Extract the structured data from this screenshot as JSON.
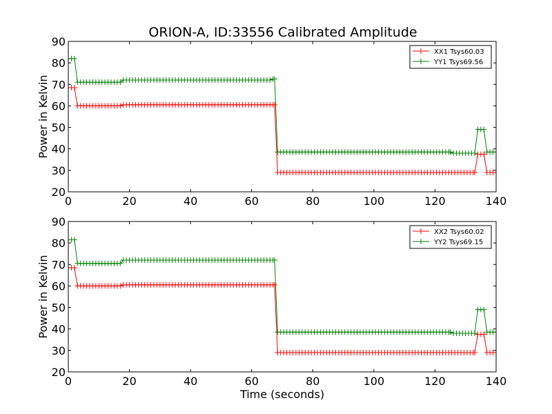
{
  "title": "ORION-A, ID:33556 Calibrated Amplitude",
  "colors": {
    "xx": "#ff0000",
    "yy": "#008000"
  },
  "chart_data": [
    {
      "type": "line",
      "title": "ORION-A, ID:33556 Calibrated Amplitude",
      "xlabel": "",
      "ylabel": "Power in Kelvin",
      "xlim": [
        0,
        140
      ],
      "ylim": [
        20,
        90
      ],
      "xticks": [
        "0",
        "20",
        "40",
        "60",
        "80",
        "100",
        "120",
        "140"
      ],
      "yticks": [
        "20",
        "30",
        "40",
        "50",
        "60",
        "70",
        "80",
        "90"
      ],
      "grid": false,
      "legend": "top-right",
      "marker": "+",
      "series": [
        {
          "name": "XX1 Tsys60.03",
          "color": "#ff0000",
          "segments": [
            {
              "x_start": 0,
              "x_end": 2,
              "y": 68.5
            },
            {
              "x_start": 3,
              "x_end": 17,
              "y": 60.0
            },
            {
              "x_start": 18,
              "x_end": 66,
              "y": 60.5
            },
            {
              "x_start": 67,
              "x_end": 67.5,
              "y": 60.5
            },
            {
              "x_start": 68.5,
              "x_end": 133,
              "y": 29.0
            },
            {
              "x_start": 134,
              "x_end": 136,
              "y": 37.5
            },
            {
              "x_start": 137,
              "x_end": 140,
              "y": 29.0
            }
          ]
        },
        {
          "name": "YY1 Tsys69.56",
          "color": "#008000",
          "segments": [
            {
              "x_start": 0,
              "x_end": 2,
              "y": 82.0
            },
            {
              "x_start": 3,
              "x_end": 17,
              "y": 71.0
            },
            {
              "x_start": 18,
              "x_end": 66,
              "y": 72.0
            },
            {
              "x_start": 67,
              "x_end": 67.5,
              "y": 72.5
            },
            {
              "x_start": 68.5,
              "x_end": 125,
              "y": 38.5
            },
            {
              "x_start": 126,
              "x_end": 133,
              "y": 38.0
            },
            {
              "x_start": 134,
              "x_end": 136,
              "y": 49.0
            },
            {
              "x_start": 137,
              "x_end": 140,
              "y": 38.5
            }
          ]
        }
      ]
    },
    {
      "type": "line",
      "title": "",
      "xlabel": "Time (seconds)",
      "ylabel": "Power in Kelvin",
      "xlim": [
        0,
        140
      ],
      "ylim": [
        20,
        90
      ],
      "xticks": [
        "0",
        "20",
        "40",
        "60",
        "80",
        "100",
        "120",
        "140"
      ],
      "yticks": [
        "20",
        "30",
        "40",
        "50",
        "60",
        "70",
        "80",
        "90"
      ],
      "grid": false,
      "legend": "top-right",
      "marker": "+",
      "series": [
        {
          "name": "XX2 Tsys60.02",
          "color": "#ff0000",
          "segments": [
            {
              "x_start": 0,
              "x_end": 2,
              "y": 68.5
            },
            {
              "x_start": 3,
              "x_end": 17,
              "y": 60.0
            },
            {
              "x_start": 18,
              "x_end": 66,
              "y": 60.5
            },
            {
              "x_start": 67,
              "x_end": 67.5,
              "y": 60.5
            },
            {
              "x_start": 68.5,
              "x_end": 133,
              "y": 29.0
            },
            {
              "x_start": 134,
              "x_end": 136,
              "y": 37.5
            },
            {
              "x_start": 137,
              "x_end": 140,
              "y": 29.0
            }
          ]
        },
        {
          "name": "YY2 Tsys69.15",
          "color": "#008000",
          "segments": [
            {
              "x_start": 0,
              "x_end": 2,
              "y": 81.5
            },
            {
              "x_start": 3,
              "x_end": 17,
              "y": 70.5
            },
            {
              "x_start": 18,
              "x_end": 66,
              "y": 72.0
            },
            {
              "x_start": 67,
              "x_end": 67.5,
              "y": 72.0
            },
            {
              "x_start": 68.5,
              "x_end": 125,
              "y": 38.5
            },
            {
              "x_start": 126,
              "x_end": 133,
              "y": 38.0
            },
            {
              "x_start": 134,
              "x_end": 136,
              "y": 49.0
            },
            {
              "x_start": 137,
              "x_end": 140,
              "y": 38.5
            }
          ]
        }
      ]
    }
  ]
}
